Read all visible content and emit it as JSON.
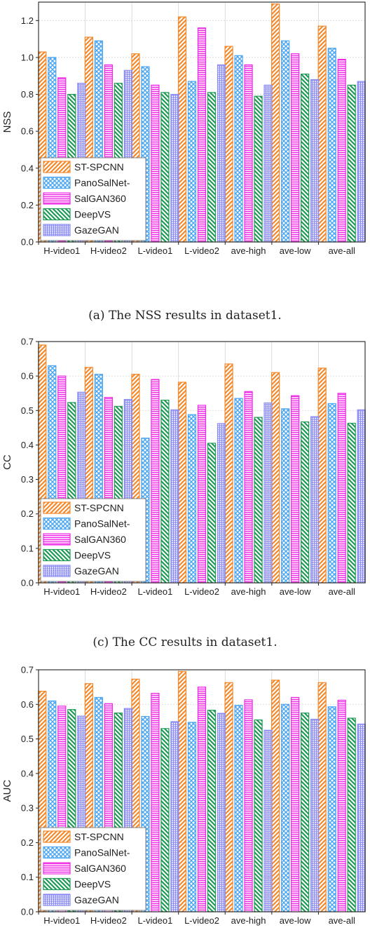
{
  "colors": {
    "ST-SPCNN": "#f5882a",
    "PanoSalNet-": "#4da6f0",
    "SalGAN360": "#ee28e6",
    "DeepVS": "#1f9a55",
    "GazeGAN": "#8a8cf4"
  },
  "patterns": [
    "diag-up",
    "crosshatch",
    "horizontal",
    "diag-down",
    "grid"
  ],
  "captions": [
    "(a)  The NSS results in dataset1.",
    "(c)  The CC results in dataset1."
  ],
  "chart_data": [
    {
      "type": "bar",
      "ylabel": "NSS",
      "ylim": [
        0,
        1.3
      ],
      "yticks": [
        "0.0",
        "0.2",
        "0.4",
        "0.6",
        "0.8",
        "1.0",
        "1.2"
      ],
      "grid": true,
      "legend": "bottom-left",
      "categories": [
        "H-video1",
        "H-video2",
        "L-video1",
        "L-video2",
        "ave-high",
        "ave-low",
        "ave-all"
      ],
      "series": [
        {
          "name": "ST-SPCNN",
          "values": [
            1.03,
            1.11,
            1.02,
            1.22,
            1.06,
            1.29,
            1.17
          ]
        },
        {
          "name": "PanoSalNet-",
          "values": [
            1.0,
            1.09,
            0.95,
            0.87,
            1.01,
            1.09,
            1.05
          ]
        },
        {
          "name": "SalGAN360",
          "values": [
            0.89,
            0.96,
            0.85,
            1.16,
            0.96,
            1.02,
            0.99
          ]
        },
        {
          "name": "DeepVS",
          "values": [
            0.8,
            0.86,
            0.81,
            0.81,
            0.79,
            0.91,
            0.85
          ]
        },
        {
          "name": "GazeGAN",
          "values": [
            0.86,
            0.93,
            0.8,
            0.96,
            0.85,
            0.88,
            0.87
          ]
        }
      ]
    },
    {
      "type": "bar",
      "ylabel": "CC",
      "ylim": [
        0,
        0.7
      ],
      "yticks": [
        "0.0",
        "0.1",
        "0.2",
        "0.3",
        "0.4",
        "0.5",
        "0.6",
        "0.7"
      ],
      "grid": true,
      "legend": "bottom-left",
      "categories": [
        "H-video1",
        "H-video2",
        "L-video1",
        "L-video2",
        "ave-high",
        "ave-low",
        "ave-all"
      ],
      "series": [
        {
          "name": "ST-SPCNN",
          "values": [
            0.69,
            0.625,
            0.605,
            0.582,
            0.635,
            0.61,
            0.623
          ]
        },
        {
          "name": "PanoSalNet-",
          "values": [
            0.63,
            0.605,
            0.42,
            0.488,
            0.535,
            0.505,
            0.52
          ]
        },
        {
          "name": "SalGAN360",
          "values": [
            0.6,
            0.538,
            0.59,
            0.515,
            0.555,
            0.543,
            0.55
          ]
        },
        {
          "name": "DeepVS",
          "values": [
            0.523,
            0.512,
            0.53,
            0.405,
            0.48,
            0.467,
            0.463
          ]
        },
        {
          "name": "GazeGAN",
          "values": [
            0.553,
            0.532,
            0.502,
            0.462,
            0.522,
            0.482,
            0.502
          ]
        }
      ]
    },
    {
      "type": "bar",
      "ylabel": "AUC",
      "ylim": [
        0,
        0.7
      ],
      "yticks": [
        "0.0",
        "0.1",
        "0.2",
        "0.3",
        "0.4",
        "0.5",
        "0.6",
        "0.7"
      ],
      "grid": true,
      "legend": "bottom-left",
      "categories": [
        "H-video1",
        "H-video2",
        "L-video1",
        "L-video2",
        "ave-high",
        "ave-low",
        "ave-all"
      ],
      "series": [
        {
          "name": "ST-SPCNN",
          "values": [
            0.638,
            0.66,
            0.673,
            0.695,
            0.663,
            0.67,
            0.663
          ]
        },
        {
          "name": "PanoSalNet-",
          "values": [
            0.61,
            0.62,
            0.565,
            0.548,
            0.597,
            0.6,
            0.593
          ]
        },
        {
          "name": "SalGAN360",
          "values": [
            0.595,
            0.602,
            0.632,
            0.65,
            0.613,
            0.62,
            0.612
          ]
        },
        {
          "name": "DeepVS",
          "values": [
            0.585,
            0.575,
            0.53,
            0.583,
            0.555,
            0.575,
            0.56
          ]
        },
        {
          "name": "GazeGAN",
          "values": [
            0.566,
            0.588,
            0.55,
            0.574,
            0.525,
            0.557,
            0.543
          ]
        }
      ]
    }
  ]
}
